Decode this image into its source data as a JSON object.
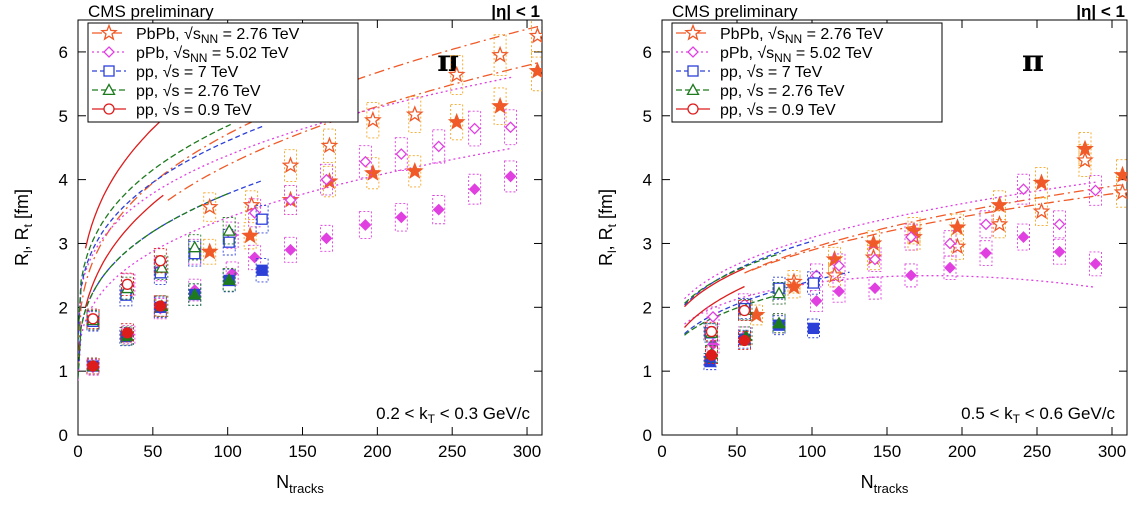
{
  "chart_data": [
    {
      "type": "scatter",
      "header_left": "CMS preliminary",
      "header_right": "|η| < 1",
      "particle": "π",
      "kt_range": "0.2 < k",
      "kt_sub": "T",
      "kt_unit": " < 0.3 GeV/c",
      "xlabel": "N",
      "xlabel_sub": "tracks",
      "ylabel": "R",
      "ylabel_subs": [
        "l",
        "t"
      ],
      "ylabel_unit": " [fm]",
      "xlim": [
        0,
        310
      ],
      "ylim": [
        0,
        6.5
      ],
      "xticks": [
        0,
        50,
        100,
        150,
        200,
        250,
        300
      ],
      "yticks": [
        0,
        1,
        2,
        3,
        4,
        5,
        6
      ],
      "grid": false,
      "legend_position": "top-left",
      "series": [
        {
          "name": "PbPb, √s",
          "name_sub": "NN",
          "name_rest": " = 2.76 TeV",
          "color": "#f05a28",
          "box_color": "#f5a623",
          "marker": "star",
          "dash": "10,4,2,4",
          "Rl": [
            [
              88,
              3.57
            ],
            [
              116,
              3.6
            ],
            [
              142,
              4.22
            ],
            [
              168,
              4.53
            ],
            [
              197,
              4.93
            ],
            [
              225,
              5.02
            ],
            [
              253,
              5.64
            ],
            [
              282,
              5.95
            ],
            [
              307,
              6.25
            ]
          ],
          "Rt": [
            [
              88,
              2.87
            ],
            [
              115,
              3.12
            ],
            [
              142,
              3.68
            ],
            [
              168,
              3.97
            ],
            [
              197,
              4.1
            ],
            [
              225,
              4.13
            ],
            [
              253,
              4.9
            ],
            [
              282,
              5.15
            ],
            [
              307,
              5.7
            ]
          ]
        },
        {
          "name": "pPb, √s",
          "name_sub": "NN",
          "name_rest": " = 5.02 TeV",
          "color": "#e040e0",
          "box_color": "#e040e0",
          "marker": "diamond",
          "dash": "2,3",
          "Rl": [
            [
              10,
              1.8
            ],
            [
              34,
              2.35
            ],
            [
              55,
              2.6
            ],
            [
              78,
              2.87
            ],
            [
              103,
              3.13
            ],
            [
              118,
              3.48
            ],
            [
              142,
              3.68
            ],
            [
              166,
              4.0
            ],
            [
              192,
              4.28
            ],
            [
              216,
              4.4
            ],
            [
              241,
              4.52
            ],
            [
              265,
              4.8
            ],
            [
              289,
              4.82
            ]
          ],
          "Rt": [
            [
              10,
              1.06
            ],
            [
              34,
              1.57
            ],
            [
              55,
              1.98
            ],
            [
              78,
              2.27
            ],
            [
              103,
              2.53
            ],
            [
              118,
              2.78
            ],
            [
              142,
              2.9
            ],
            [
              166,
              3.08
            ],
            [
              192,
              3.29
            ],
            [
              216,
              3.41
            ],
            [
              241,
              3.53
            ],
            [
              265,
              3.85
            ],
            [
              289,
              4.05
            ]
          ]
        },
        {
          "name": "pp, √s",
          "name_sub": "",
          "name_rest": " = 7 TeV",
          "color": "#2c40d8",
          "box_color": "#2c40d8",
          "marker": "square",
          "dash": "5,3",
          "Rl": [
            [
              10,
              1.78
            ],
            [
              32,
              2.19
            ],
            [
              55,
              2.54
            ],
            [
              78,
              2.84
            ],
            [
              101,
              3.02
            ],
            [
              123,
              3.38
            ]
          ],
          "Rt": [
            [
              10,
              1.08
            ],
            [
              32,
              1.54
            ],
            [
              55,
              2.0
            ],
            [
              78,
              2.2
            ],
            [
              101,
              2.42
            ],
            [
              123,
              2.58
            ]
          ]
        },
        {
          "name": "pp, √s",
          "name_sub": "",
          "name_rest": " = 2.76 TeV",
          "color": "#1e7a1e",
          "box_color": "#1e7a1e",
          "marker": "triangle",
          "dash": "6,3",
          "Rl": [
            [
              10,
              1.8
            ],
            [
              33,
              2.3
            ],
            [
              56,
              2.62
            ],
            [
              78,
              2.94
            ],
            [
              101,
              3.2
            ]
          ],
          "Rt": [
            [
              10,
              1.08
            ],
            [
              33,
              1.55
            ],
            [
              56,
              2.02
            ],
            [
              78,
              2.2
            ],
            [
              101,
              2.43
            ]
          ]
        },
        {
          "name": "pp, √s",
          "name_sub": "",
          "name_rest": " = 0.9 TeV",
          "color": "#dd1c1c",
          "box_color": "#dd1c1c",
          "marker": "circle",
          "dash": "",
          "Rl": [
            [
              10,
              1.82
            ],
            [
              33,
              2.36
            ],
            [
              55,
              2.73
            ]
          ],
          "Rt": [
            [
              10,
              1.08
            ],
            [
              33,
              1.6
            ],
            [
              55,
              2.02
            ]
          ]
        }
      ],
      "fits": [
        {
          "series": 0,
          "kind": "Rl",
          "a": 1.0,
          "b": 0.8,
          "color": "#f05a28",
          "dash": "10,4,2,4",
          "from": 0,
          "to": 310
        },
        {
          "series": 0,
          "kind": "Rt",
          "a": 0.7,
          "b": 0.76,
          "color": "#f05a28",
          "dash": "10,4,2,4",
          "from": 60,
          "to": 310
        },
        {
          "series": 1,
          "kind": "Rl",
          "a": 1.5,
          "b": 0.62,
          "color": "#e040e0",
          "dash": "2,3",
          "from": 0,
          "to": 290
        },
        {
          "series": 1,
          "kind": "Rt",
          "a": 0.85,
          "b": 0.55,
          "color": "#e040e0",
          "dash": "2,3",
          "from": 0,
          "to": 290
        },
        {
          "series": 2,
          "kind": "Rl",
          "a": 1.45,
          "b": 0.68,
          "color": "#2c40d8",
          "dash": "5,3",
          "from": 0,
          "to": 125
        },
        {
          "series": 2,
          "kind": "Rt",
          "a": 0.9,
          "b": 0.62,
          "color": "#2c40d8",
          "dash": "5,3",
          "from": 0,
          "to": 125
        },
        {
          "series": 3,
          "kind": "Rl",
          "a": 1.5,
          "b": 0.72,
          "color": "#1e7a1e",
          "dash": "6,3",
          "from": 0,
          "to": 102
        },
        {
          "series": 3,
          "kind": "Rt",
          "a": 0.9,
          "b": 0.62,
          "color": "#1e7a1e",
          "dash": "6,3",
          "from": 0,
          "to": 102
        },
        {
          "series": 4,
          "kind": "Rl",
          "a": 1.3,
          "b": 0.95,
          "color": "#dd1c1c",
          "dash": "",
          "from": 5,
          "to": 57
        },
        {
          "series": 4,
          "kind": "Rt",
          "a": 0.6,
          "b": 0.82,
          "color": "#dd1c1c",
          "dash": "",
          "from": 5,
          "to": 57
        }
      ]
    },
    {
      "type": "scatter",
      "header_left": "CMS preliminary",
      "header_right": "|η| < 1",
      "particle": "π",
      "kt_range": "0.5 < k",
      "kt_sub": "T",
      "kt_unit": " < 0.6 GeV/c",
      "xlabel": "N",
      "xlabel_sub": "tracks",
      "ylabel": "R",
      "ylabel_subs": [
        "l",
        "t"
      ],
      "ylabel_unit": " [fm]",
      "xlim": [
        0,
        310
      ],
      "ylim": [
        0,
        6.5
      ],
      "xticks": [
        0,
        50,
        100,
        150,
        200,
        250,
        300
      ],
      "yticks": [
        0,
        1,
        2,
        3,
        4,
        5,
        6
      ],
      "grid": false,
      "legend_position": "top-left",
      "series": [
        {
          "name": "PbPb, √s",
          "name_sub": "NN",
          "name_rest": " = 2.76 TeV",
          "color": "#f05a28",
          "box_color": "#f5a623",
          "marker": "star",
          "dash": "10,4,2,4",
          "Rl": [
            [
              88,
              2.4
            ],
            [
              115,
              2.5
            ],
            [
              141,
              2.78
            ],
            [
              168,
              3.1
            ],
            [
              197,
              2.95
            ],
            [
              225,
              3.3
            ],
            [
              253,
              3.5
            ],
            [
              282,
              4.3
            ],
            [
              307,
              3.8
            ]
          ],
          "Rt": [
            [
              63,
              1.88
            ],
            [
              88,
              2.32
            ],
            [
              115,
              2.75
            ],
            [
              141,
              3.0
            ],
            [
              168,
              3.2
            ],
            [
              197,
              3.25
            ],
            [
              225,
              3.6
            ],
            [
              253,
              3.95
            ],
            [
              282,
              4.48
            ],
            [
              307,
              4.07
            ]
          ]
        },
        {
          "name": "pPb, √s",
          "name_sub": "NN",
          "name_rest": " = 5.02 TeV",
          "color": "#e040e0",
          "box_color": "#e040e0",
          "marker": "diamond",
          "dash": "2,3",
          "Rl": [
            [
              34,
              1.85
            ],
            [
              55,
              2.05
            ],
            [
              78,
              2.22
            ],
            [
              103,
              2.5
            ],
            [
              118,
              2.65
            ],
            [
              142,
              2.75
            ],
            [
              166,
              3.1
            ],
            [
              192,
              3.0
            ],
            [
              216,
              3.3
            ],
            [
              241,
              3.85
            ],
            [
              265,
              3.3
            ],
            [
              289,
              3.83
            ]
          ],
          "Rt": [
            [
              34,
              1.42
            ],
            [
              55,
              1.55
            ],
            [
              78,
              1.75
            ],
            [
              103,
              2.1
            ],
            [
              118,
              2.25
            ],
            [
              142,
              2.3
            ],
            [
              166,
              2.5
            ],
            [
              192,
              2.62
            ],
            [
              216,
              2.85
            ],
            [
              241,
              3.1
            ],
            [
              265,
              2.87
            ],
            [
              289,
              2.68
            ]
          ]
        },
        {
          "name": "pp, √s",
          "name_sub": "",
          "name_rest": " = 7 TeV",
          "color": "#2c40d8",
          "box_color": "#2c40d8",
          "marker": "square",
          "dash": "5,3",
          "Rl": [
            [
              32,
              1.6
            ],
            [
              55,
              1.98
            ],
            [
              78,
              2.3
            ],
            [
              101,
              2.38
            ]
          ],
          "Rt": [
            [
              32,
              1.15
            ],
            [
              55,
              1.5
            ],
            [
              78,
              1.72
            ],
            [
              101,
              1.67
            ]
          ]
        },
        {
          "name": "pp, √s",
          "name_sub": "",
          "name_rest": " = 2.76 TeV",
          "color": "#1e7a1e",
          "box_color": "#1e7a1e",
          "marker": "triangle",
          "dash": "6,3",
          "Rl": [
            [
              33,
              1.6
            ],
            [
              56,
              1.96
            ],
            [
              78,
              2.22
            ]
          ],
          "Rt": [
            [
              33,
              1.27
            ],
            [
              56,
              1.55
            ],
            [
              78,
              1.75
            ]
          ]
        },
        {
          "name": "pp, √s",
          "name_sub": "",
          "name_rest": " = 0.9 TeV",
          "color": "#dd1c1c",
          "box_color": "#dd1c1c",
          "marker": "circle",
          "dash": "",
          "Rl": [
            [
              33,
              1.62
            ],
            [
              55,
              1.95
            ]
          ],
          "Rt": [
            [
              33,
              1.25
            ],
            [
              55,
              1.48
            ]
          ]
        }
      ],
      "fits": [
        {
          "series": 0,
          "kind": "Rl",
          "a": 0.9,
          "b": 0.43,
          "color": "#f05a28",
          "dash": "10,4,2,4",
          "from": 60,
          "to": 310
        },
        {
          "series": 0,
          "kind": "Rt",
          "a": 0.75,
          "b": 0.47,
          "color": "#f05a28",
          "dash": "10,4,2,4",
          "from": 55,
          "to": 310
        },
        {
          "series": 1,
          "kind": "Rl",
          "a": 1.05,
          "b": 0.44,
          "color": "#e040e0",
          "dash": "2,3",
          "from": 15,
          "to": 290
        },
        {
          "series": 1,
          "kind": "Rt",
          "a": 0.9,
          "b": 0.34,
          "color": "#e040e0",
          "dash": "2,3",
          "from": 15,
          "to": 290,
          "sag": 1e-05
        },
        {
          "series": 2,
          "kind": "Rl",
          "a": 0.9,
          "b": 0.46,
          "color": "#2c40d8",
          "dash": "5,3",
          "from": 15,
          "to": 102
        },
        {
          "series": 2,
          "kind": "Rt",
          "a": 0.65,
          "b": 0.38,
          "color": "#2c40d8",
          "dash": "5,3",
          "from": 15,
          "to": 125
        },
        {
          "series": 3,
          "kind": "Rl",
          "a": 1.0,
          "b": 0.43,
          "color": "#1e7a1e",
          "dash": "6,3",
          "from": 15,
          "to": 80
        },
        {
          "series": 3,
          "kind": "Rt",
          "a": 0.7,
          "b": 0.35,
          "color": "#1e7a1e",
          "dash": "6,3",
          "from": 15,
          "to": 80
        },
        {
          "series": 4,
          "kind": "Rl",
          "a": 0.9,
          "b": 0.45,
          "color": "#dd1c1c",
          "dash": "",
          "from": 15,
          "to": 56
        },
        {
          "series": 4,
          "kind": "Rt",
          "a": 0.5,
          "b": 0.48,
          "color": "#dd1c1c",
          "dash": "",
          "from": 15,
          "to": 56
        }
      ]
    }
  ]
}
